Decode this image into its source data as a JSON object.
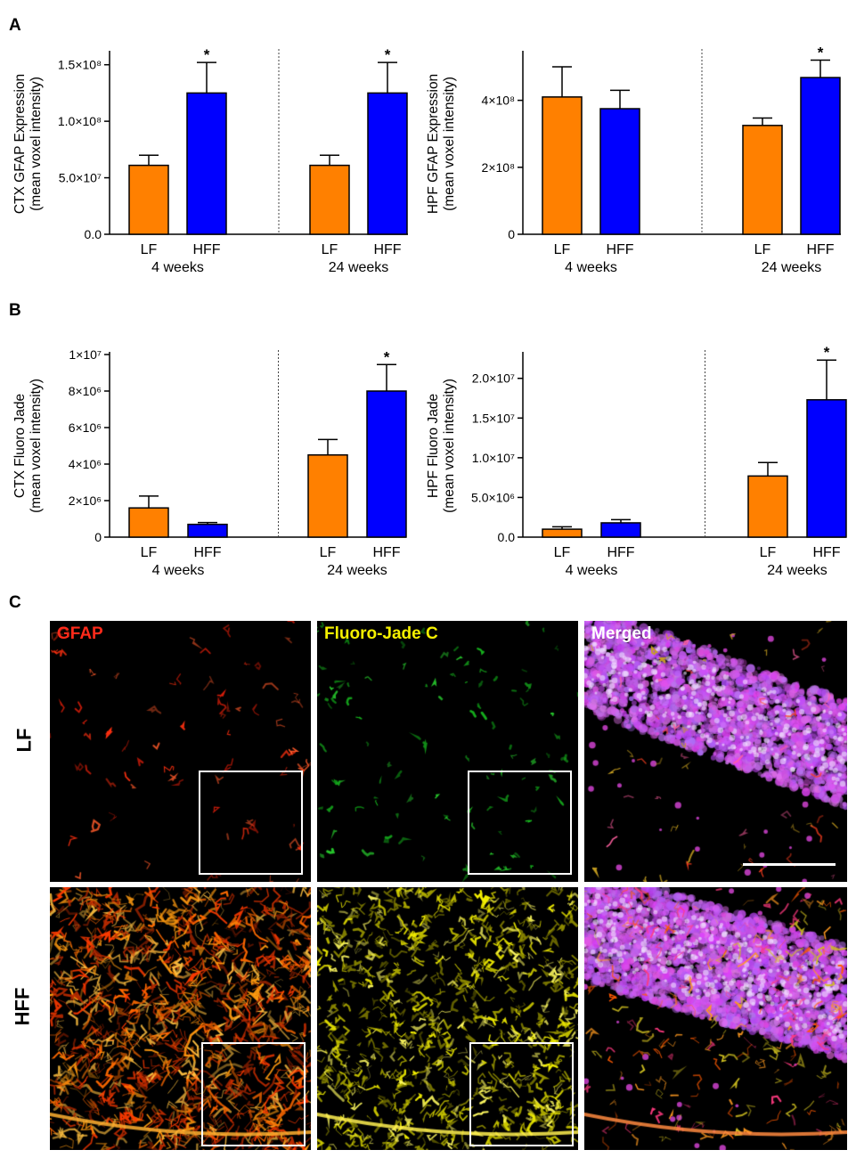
{
  "panels": {
    "a": "A",
    "b": "B",
    "c": "C"
  },
  "chart_data": [
    {
      "type": "bar",
      "ylabel": "CTX GFAP Expression",
      "ylabel2": "(mean voxel intensity)",
      "yticks": [
        "0.0",
        "5.0×10⁷",
        "1.0×10⁸",
        "1.5×10⁸"
      ],
      "yticks_values": [
        0,
        50000000,
        100000000,
        150000000
      ],
      "ylim": [
        0,
        160000000
      ],
      "groups": [
        {
          "name": "4 weeks",
          "categories": [
            "LF",
            "HFF"
          ],
          "values": [
            61000000,
            125000000
          ],
          "errors": [
            9000000,
            27000000
          ],
          "sig": [
            "",
            "*"
          ]
        },
        {
          "name": "24 weeks",
          "categories": [
            "LF",
            "HFF"
          ],
          "values": [
            61000000,
            125000000
          ],
          "errors": [
            9000000,
            27000000
          ],
          "sig": [
            "",
            "*"
          ]
        }
      ],
      "colors": {
        "LF": "#ff8000",
        "HFF": "#0000ff"
      }
    },
    {
      "type": "bar",
      "ylabel": "HPF GFAP Expression",
      "ylabel2": "(mean voxel intensity)",
      "yticks": [
        "0",
        "2×10⁸",
        "4×10⁸"
      ],
      "yticks_values": [
        0,
        200000000,
        400000000
      ],
      "ylim": [
        0,
        540000000
      ],
      "groups": [
        {
          "name": "4 weeks",
          "categories": [
            "LF",
            "HFF"
          ],
          "values": [
            410000000,
            375000000
          ],
          "errors": [
            90000000,
            55000000
          ],
          "sig": [
            "",
            ""
          ]
        },
        {
          "name": "24 weeks",
          "categories": [
            "LF",
            "HFF"
          ],
          "values": [
            325000000,
            468000000
          ],
          "errors": [
            22000000,
            52000000
          ],
          "sig": [
            "",
            "*"
          ]
        }
      ],
      "colors": {
        "LF": "#ff8000",
        "HFF": "#0000ff"
      }
    },
    {
      "type": "bar",
      "ylabel": "CTX Fluoro Jade",
      "ylabel2": "(mean voxel intensity)",
      "yticks": [
        "0",
        "2×10⁶",
        "4×10⁶",
        "6×10⁶",
        "8×10⁶",
        "1×10⁷"
      ],
      "yticks_values": [
        0,
        2000000,
        4000000,
        6000000,
        8000000,
        10000000
      ],
      "ylim": [
        0,
        10000000
      ],
      "groups": [
        {
          "name": "4 weeks",
          "categories": [
            "LF",
            "HFF"
          ],
          "values": [
            1600000,
            700000
          ],
          "errors": [
            650000,
            100000
          ],
          "sig": [
            "",
            ""
          ]
        },
        {
          "name": "24 weeks",
          "categories": [
            "LF",
            "HFF"
          ],
          "values": [
            4500000,
            8000000
          ],
          "errors": [
            850000,
            1450000
          ],
          "sig": [
            "",
            "*"
          ]
        }
      ],
      "colors": {
        "LF": "#ff8000",
        "HFF": "#0000ff"
      }
    },
    {
      "type": "bar",
      "ylabel": "HPF Fluoro Jade",
      "ylabel2": "(mean voxel intensity)",
      "yticks": [
        "0.0",
        "5.0×10⁶",
        "1.0×10⁷",
        "1.5×10⁷",
        "2.0×10⁷"
      ],
      "yticks_values": [
        0,
        5000000,
        10000000,
        15000000,
        20000000
      ],
      "ylim": [
        0,
        23000000
      ],
      "groups": [
        {
          "name": "4 weeks",
          "categories": [
            "LF",
            "HFF"
          ],
          "values": [
            1000000,
            1800000
          ],
          "errors": [
            300000,
            400000
          ],
          "sig": [
            "",
            ""
          ]
        },
        {
          "name": "24 weeks",
          "categories": [
            "LF",
            "HFF"
          ],
          "values": [
            7700000,
            17300000
          ],
          "errors": [
            1700000,
            5000000
          ],
          "sig": [
            "",
            "*"
          ]
        }
      ],
      "colors": {
        "LF": "#ff8000",
        "HFF": "#0000ff"
      }
    }
  ],
  "micrographs": {
    "columns": [
      {
        "label": "GFAP",
        "color": "#ff2a1a"
      },
      {
        "label": "Fluoro-Jade C",
        "color": "#f4f000"
      },
      {
        "label": "Merged",
        "color": "#ffffff"
      }
    ],
    "rows": [
      "LF",
      "HFF"
    ]
  }
}
